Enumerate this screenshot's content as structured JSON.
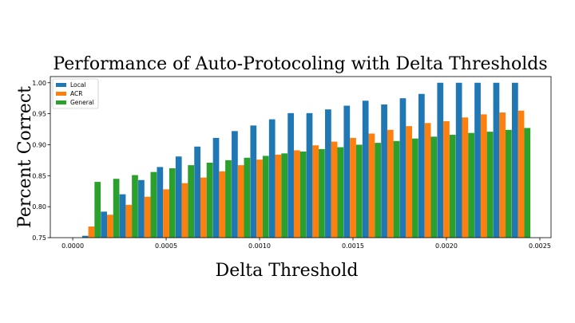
{
  "chart_data": {
    "type": "bar",
    "title": "Performance of Auto-Protocoling with Delta Thresholds",
    "xlabel": "Delta Threshold",
    "ylabel": "Percent Correct",
    "xlim": [
      -0.00012,
      0.00256
    ],
    "ylim": [
      0.75,
      1.01
    ],
    "xticks": [
      "0.0000",
      "0.0005",
      "0.0010",
      "0.0015",
      "0.0020",
      "0.0025"
    ],
    "xtick_values": [
      0.0,
      0.0005,
      0.001,
      0.0015,
      0.002,
      0.0025
    ],
    "yticks": [
      "0.75",
      "0.80",
      "0.85",
      "0.90",
      "0.95",
      "1.00"
    ],
    "ytick_values": [
      0.75,
      0.8,
      0.85,
      0.9,
      0.95,
      1.0
    ],
    "grid": false,
    "legend_position": "top-left",
    "bar_width": 3.3e-05,
    "x": [
      0.0001,
      0.0002,
      0.0003,
      0.0004,
      0.0005,
      0.0006,
      0.0007,
      0.0008,
      0.0009,
      0.001,
      0.0011,
      0.0012,
      0.0013,
      0.0014,
      0.0015,
      0.0016,
      0.0017,
      0.0018,
      0.0019,
      0.002,
      0.0021,
      0.0022,
      0.0023,
      0.0024
    ],
    "series": [
      {
        "name": "Local",
        "color": "#1f77b4",
        "values": [
          0.753,
          0.792,
          0.82,
          0.843,
          0.864,
          0.881,
          0.897,
          0.911,
          0.922,
          0.931,
          0.941,
          0.951,
          0.951,
          0.957,
          0.963,
          0.971,
          0.965,
          0.975,
          0.982,
          1.0,
          1.0,
          1.0,
          1.0,
          1.0
        ]
      },
      {
        "name": "ACR",
        "color": "#ff7f0e",
        "values": [
          0.768,
          0.787,
          0.803,
          0.816,
          0.828,
          0.838,
          0.847,
          0.857,
          0.867,
          0.876,
          0.884,
          0.891,
          0.899,
          0.905,
          0.911,
          0.918,
          0.924,
          0.93,
          0.935,
          0.938,
          0.944,
          0.949,
          0.952,
          0.955
        ]
      },
      {
        "name": "General",
        "color": "#2ca02c",
        "values": [
          0.84,
          0.845,
          0.851,
          0.856,
          0.862,
          0.867,
          0.871,
          0.875,
          0.879,
          0.882,
          0.886,
          0.889,
          0.893,
          0.896,
          0.9,
          0.903,
          0.906,
          0.91,
          0.913,
          0.916,
          0.919,
          0.921,
          0.924,
          0.927
        ]
      }
    ]
  }
}
